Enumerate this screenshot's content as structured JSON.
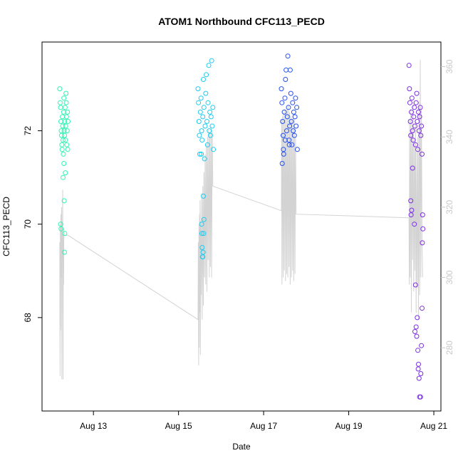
{
  "chart_data": {
    "type": "scatter",
    "title": "ATOM1 Northbound CFC113_PECD",
    "xlabel": "Date",
    "ylabel": "CFC113_PECD",
    "xlim": [
      "2016-08-11T19:00",
      "2016-08-21T04:00"
    ],
    "ylim": [
      66.0,
      73.9
    ],
    "y2lim": [
      262,
      367
    ],
    "x_ticks": [
      {
        "date": "2016-08-13T00:00",
        "label": "Aug 13"
      },
      {
        "date": "2016-08-15T00:00",
        "label": "Aug 15"
      },
      {
        "date": "2016-08-17T00:00",
        "label": "Aug 17"
      },
      {
        "date": "2016-08-19T00:00",
        "label": "Aug 19"
      },
      {
        "date": "2016-08-21T00:00",
        "label": "Aug 21"
      }
    ],
    "y_ticks": [
      68,
      70,
      72
    ],
    "y2_ticks": [
      280,
      300,
      320,
      340,
      360
    ],
    "grid": false,
    "series": [
      {
        "color": "#2ef5b4",
        "marker": "circle",
        "points": [
          [
            "2016-08-12T05:00",
            72.9
          ],
          [
            "2016-08-12T05:15",
            72.6
          ],
          [
            "2016-08-12T05:30",
            72.5
          ],
          [
            "2016-08-12T05:40",
            72.2
          ],
          [
            "2016-08-12T05:50",
            72.0
          ],
          [
            "2016-08-12T06:00",
            71.9
          ],
          [
            "2016-08-12T06:10",
            71.7
          ],
          [
            "2016-08-12T06:20",
            71.6
          ],
          [
            "2016-08-12T06:30",
            72.3
          ],
          [
            "2016-08-12T06:40",
            72.1
          ],
          [
            "2016-08-12T06:50",
            71.8
          ],
          [
            "2016-08-12T07:00",
            71.5
          ],
          [
            "2016-08-12T07:10",
            72.4
          ],
          [
            "2016-08-12T07:20",
            72.7
          ],
          [
            "2016-08-12T07:30",
            72.0
          ],
          [
            "2016-08-12T07:40",
            71.9
          ],
          [
            "2016-08-12T07:50",
            72.2
          ],
          [
            "2016-08-12T08:00",
            72.5
          ],
          [
            "2016-08-12T08:10",
            71.8
          ],
          [
            "2016-08-12T08:20",
            72.1
          ],
          [
            "2016-08-12T08:30",
            72.8
          ],
          [
            "2016-08-12T08:40",
            72.6
          ],
          [
            "2016-08-12T08:50",
            72.3
          ],
          [
            "2016-08-12T09:00",
            71.7
          ],
          [
            "2016-08-12T09:10",
            72.0
          ],
          [
            "2016-08-12T09:20",
            72.4
          ],
          [
            "2016-08-12T09:30",
            71.6
          ],
          [
            "2016-08-12T09:40",
            72.2
          ],
          [
            "2016-08-12T05:30",
            70.0
          ],
          [
            "2016-08-12T05:45",
            69.9
          ],
          [
            "2016-08-12T07:30",
            70.5
          ],
          [
            "2016-08-12T07:50",
            69.8
          ],
          [
            "2016-08-12T07:40",
            69.4
          ],
          [
            "2016-08-12T08:10",
            71.1
          ],
          [
            "2016-08-12T06:50",
            71.0
          ],
          [
            "2016-08-12T07:20",
            71.3
          ]
        ]
      },
      {
        "color": "#1ecbf0",
        "marker": "circle",
        "points": [
          [
            "2016-08-15T11:00",
            72.9
          ],
          [
            "2016-08-15T11:15",
            72.6
          ],
          [
            "2016-08-15T11:30",
            72.2
          ],
          [
            "2016-08-15T11:45",
            71.9
          ],
          [
            "2016-08-15T12:00",
            71.5
          ],
          [
            "2016-08-15T12:20",
            72.4
          ],
          [
            "2016-08-15T12:40",
            72.7
          ],
          [
            "2016-08-15T13:00",
            72.0
          ],
          [
            "2016-08-15T13:20",
            71.8
          ],
          [
            "2016-08-15T13:40",
            72.3
          ],
          [
            "2016-08-15T14:00",
            73.1
          ],
          [
            "2016-08-15T14:20",
            72.5
          ],
          [
            "2016-08-15T14:40",
            71.4
          ],
          [
            "2016-08-15T15:00",
            72.1
          ],
          [
            "2016-08-15T15:20",
            72.8
          ],
          [
            "2016-08-15T15:40",
            73.2
          ],
          [
            "2016-08-15T16:00",
            72.2
          ],
          [
            "2016-08-15T16:20",
            71.7
          ],
          [
            "2016-08-15T16:40",
            72.6
          ],
          [
            "2016-08-15T17:00",
            73.4
          ],
          [
            "2016-08-15T17:20",
            72.0
          ],
          [
            "2016-08-15T17:40",
            72.4
          ],
          [
            "2016-08-15T18:00",
            71.9
          ],
          [
            "2016-08-15T18:20",
            72.3
          ],
          [
            "2016-08-15T18:40",
            73.5
          ],
          [
            "2016-08-15T19:00",
            72.1
          ],
          [
            "2016-08-15T19:20",
            72.5
          ],
          [
            "2016-08-15T19:40",
            71.6
          ],
          [
            "2016-08-15T13:00",
            70.0
          ],
          [
            "2016-08-15T13:10",
            69.8
          ],
          [
            "2016-08-15T13:20",
            69.5
          ],
          [
            "2016-08-15T13:30",
            69.3
          ],
          [
            "2016-08-15T13:40",
            69.3
          ],
          [
            "2016-08-15T13:50",
            69.4
          ],
          [
            "2016-08-15T14:00",
            70.6
          ],
          [
            "2016-08-15T14:10",
            69.8
          ],
          [
            "2016-08-15T12:50",
            71.5
          ],
          [
            "2016-08-15T14:20",
            70.1
          ]
        ]
      },
      {
        "color": "#2550f0",
        "marker": "circle",
        "points": [
          [
            "2016-08-17T10:00",
            72.9
          ],
          [
            "2016-08-17T10:20",
            72.6
          ],
          [
            "2016-08-17T10:40",
            72.2
          ],
          [
            "2016-08-17T11:00",
            71.9
          ],
          [
            "2016-08-17T11:20",
            71.5
          ],
          [
            "2016-08-17T11:40",
            72.4
          ],
          [
            "2016-08-17T12:00",
            72.7
          ],
          [
            "2016-08-17T12:20",
            73.1
          ],
          [
            "2016-08-17T12:40",
            73.3
          ],
          [
            "2016-08-17T13:00",
            72.0
          ],
          [
            "2016-08-17T13:20",
            72.3
          ],
          [
            "2016-08-17T13:40",
            73.6
          ],
          [
            "2016-08-17T14:00",
            72.5
          ],
          [
            "2016-08-17T14:20",
            71.8
          ],
          [
            "2016-08-17T14:40",
            72.1
          ],
          [
            "2016-08-17T15:00",
            73.3
          ],
          [
            "2016-08-17T15:20",
            72.8
          ],
          [
            "2016-08-17T15:40",
            72.2
          ],
          [
            "2016-08-17T16:00",
            71.7
          ],
          [
            "2016-08-17T16:20",
            72.6
          ],
          [
            "2016-08-17T16:40",
            72.0
          ],
          [
            "2016-08-17T17:00",
            72.4
          ],
          [
            "2016-08-17T17:20",
            71.9
          ],
          [
            "2016-08-17T17:40",
            72.3
          ],
          [
            "2016-08-17T18:00",
            72.7
          ],
          [
            "2016-08-17T18:20",
            72.1
          ],
          [
            "2016-08-17T18:40",
            72.5
          ],
          [
            "2016-08-17T19:00",
            71.6
          ],
          [
            "2016-08-17T10:30",
            71.3
          ],
          [
            "2016-08-17T11:10",
            71.6
          ],
          [
            "2016-08-17T12:10",
            71.8
          ],
          [
            "2016-08-17T14:30",
            71.7
          ]
        ]
      },
      {
        "color": "#7d2ee6",
        "marker": "circle",
        "points": [
          [
            "2016-08-20T10:00",
            73.4
          ],
          [
            "2016-08-20T10:15",
            72.9
          ],
          [
            "2016-08-20T10:30",
            72.6
          ],
          [
            "2016-08-20T10:45",
            72.2
          ],
          [
            "2016-08-20T11:00",
            71.9
          ],
          [
            "2016-08-20T11:20",
            72.4
          ],
          [
            "2016-08-20T11:40",
            72.7
          ],
          [
            "2016-08-20T12:00",
            72.0
          ],
          [
            "2016-08-20T12:20",
            71.8
          ],
          [
            "2016-08-20T12:40",
            72.3
          ],
          [
            "2016-08-20T13:00",
            72.5
          ],
          [
            "2016-08-20T13:20",
            72.1
          ],
          [
            "2016-08-20T13:40",
            71.7
          ],
          [
            "2016-08-20T14:00",
            72.6
          ],
          [
            "2016-08-20T14:20",
            72.8
          ],
          [
            "2016-08-20T14:40",
            72.2
          ],
          [
            "2016-08-20T15:00",
            71.6
          ],
          [
            "2016-08-20T15:20",
            72.4
          ],
          [
            "2016-08-20T15:40",
            72.0
          ],
          [
            "2016-08-20T16:00",
            72.3
          ],
          [
            "2016-08-20T16:20",
            72.5
          ],
          [
            "2016-08-20T16:40",
            71.9
          ],
          [
            "2016-08-20T17:00",
            72.1
          ],
          [
            "2016-08-20T17:20",
            71.5
          ],
          [
            "2016-08-20T11:00",
            70.5
          ],
          [
            "2016-08-20T11:10",
            70.2
          ],
          [
            "2016-08-20T11:30",
            70.3
          ],
          [
            "2016-08-20T12:00",
            71.2
          ],
          [
            "2016-08-20T13:00",
            70.0
          ],
          [
            "2016-08-20T13:40",
            68.7
          ],
          [
            "2016-08-20T14:00",
            67.8
          ],
          [
            "2016-08-20T14:20",
            67.6
          ],
          [
            "2016-08-20T15:00",
            67.3
          ],
          [
            "2016-08-20T15:20",
            67.0
          ],
          [
            "2016-08-20T15:40",
            66.7
          ],
          [
            "2016-08-20T16:00",
            66.3
          ],
          [
            "2016-08-20T16:30",
            66.3
          ],
          [
            "2016-08-20T17:00",
            67.4
          ],
          [
            "2016-08-20T17:20",
            68.2
          ],
          [
            "2016-08-20T17:30",
            69.6
          ],
          [
            "2016-08-20T17:40",
            70.2
          ],
          [
            "2016-08-20T17:50",
            69.9
          ],
          [
            "2016-08-20T16:40",
            66.8
          ],
          [
            "2016-08-20T14:40",
            68.0
          ],
          [
            "2016-08-20T15:10",
            66.9
          ],
          [
            "2016-08-20T13:20",
            67.7
          ]
        ]
      }
    ],
    "secondary_series": {
      "color": "#d3d3d3",
      "type": "line",
      "axis": "right",
      "points": [
        [
          "2016-08-12T05:00",
          310
        ],
        [
          "2016-08-12T05:10",
          272
        ],
        [
          "2016-08-12T05:20",
          315
        ],
        [
          "2016-08-12T05:30",
          285
        ],
        [
          "2016-08-12T05:40",
          318
        ],
        [
          "2016-08-12T05:50",
          300
        ],
        [
          "2016-08-12T06:00",
          320
        ],
        [
          "2016-08-12T06:10",
          271
        ],
        [
          "2016-08-12T06:20",
          316
        ],
        [
          "2016-08-12T06:30",
          305
        ],
        [
          "2016-08-12T06:40",
          325
        ],
        [
          "2016-08-12T06:50",
          271
        ],
        [
          "2016-08-12T07:00",
          312
        ],
        [
          "2016-08-12T07:10",
          298
        ],
        [
          "2016-08-12T07:20",
          314
        ],
        [
          "2016-08-12T07:30",
          312
        ],
        [
          "2016-08-12T09:40",
          312
        ],
        [
          "2016-08-15T11:00",
          288
        ],
        [
          "2016-08-15T11:10",
          310
        ],
        [
          "2016-08-15T11:20",
          275
        ],
        [
          "2016-08-15T11:30",
          315
        ],
        [
          "2016-08-15T11:40",
          280
        ],
        [
          "2016-08-15T11:50",
          318
        ],
        [
          "2016-08-15T12:00",
          290
        ],
        [
          "2016-08-15T12:10",
          322
        ],
        [
          "2016-08-15T12:20",
          278
        ],
        [
          "2016-08-15T12:30",
          316
        ],
        [
          "2016-08-15T12:40",
          295
        ],
        [
          "2016-08-15T13:00",
          324
        ],
        [
          "2016-08-15T13:20",
          288
        ],
        [
          "2016-08-15T13:40",
          326
        ],
        [
          "2016-08-15T14:00",
          292
        ],
        [
          "2016-08-15T14:20",
          330
        ],
        [
          "2016-08-15T14:40",
          300
        ],
        [
          "2016-08-15T15:00",
          335
        ],
        [
          "2016-08-15T15:20",
          298
        ],
        [
          "2016-08-15T15:40",
          338
        ],
        [
          "2016-08-15T16:00",
          296
        ],
        [
          "2016-08-15T16:20",
          340
        ],
        [
          "2016-08-15T16:40",
          305
        ],
        [
          "2016-08-15T17:00",
          342
        ],
        [
          "2016-08-15T17:20",
          300
        ],
        [
          "2016-08-15T17:40",
          341
        ],
        [
          "2016-08-15T18:00",
          303
        ],
        [
          "2016-08-15T18:20",
          343
        ],
        [
          "2016-08-15T18:40",
          300
        ],
        [
          "2016-08-15T19:00",
          342
        ],
        [
          "2016-08-15T19:20",
          326
        ],
        [
          "2016-08-17T10:00",
          319
        ],
        [
          "2016-08-17T10:10",
          345
        ],
        [
          "2016-08-17T10:20",
          298
        ],
        [
          "2016-08-17T10:40",
          346
        ],
        [
          "2016-08-17T11:00",
          300
        ],
        [
          "2016-08-17T11:20",
          347
        ],
        [
          "2016-08-17T11:40",
          302
        ],
        [
          "2016-08-17T12:00",
          348
        ],
        [
          "2016-08-17T12:20",
          299
        ],
        [
          "2016-08-17T12:40",
          347
        ],
        [
          "2016-08-17T13:00",
          301
        ],
        [
          "2016-08-17T13:20",
          348
        ],
        [
          "2016-08-17T13:40",
          300
        ],
        [
          "2016-08-17T14:00",
          349
        ],
        [
          "2016-08-17T14:20",
          303
        ],
        [
          "2016-08-17T14:40",
          347
        ],
        [
          "2016-08-17T15:00",
          298
        ],
        [
          "2016-08-17T15:20",
          346
        ],
        [
          "2016-08-17T15:40",
          300
        ],
        [
          "2016-08-17T16:00",
          345
        ],
        [
          "2016-08-17T16:20",
          302
        ],
        [
          "2016-08-17T16:40",
          346
        ],
        [
          "2016-08-17T17:00",
          299
        ],
        [
          "2016-08-17T17:20",
          345
        ],
        [
          "2016-08-17T17:40",
          301
        ],
        [
          "2016-08-17T18:00",
          340
        ],
        [
          "2016-08-17T18:20",
          318
        ],
        [
          "2016-08-20T10:00",
          317
        ],
        [
          "2016-08-20T10:10",
          298
        ],
        [
          "2016-08-20T10:20",
          345
        ],
        [
          "2016-08-20T10:40",
          300
        ],
        [
          "2016-08-20T11:00",
          348
        ],
        [
          "2016-08-20T11:20",
          290
        ],
        [
          "2016-08-20T11:40",
          344
        ],
        [
          "2016-08-20T12:00",
          305
        ],
        [
          "2016-08-20T12:20",
          350
        ],
        [
          "2016-08-20T12:40",
          296
        ],
        [
          "2016-08-20T13:00",
          338
        ],
        [
          "2016-08-20T13:20",
          302
        ],
        [
          "2016-08-20T13:40",
          345
        ],
        [
          "2016-08-20T14:00",
          290
        ],
        [
          "2016-08-20T14:20",
          336
        ],
        [
          "2016-08-20T14:40",
          297
        ],
        [
          "2016-08-20T15:00",
          340
        ],
        [
          "2016-08-20T15:20",
          288
        ],
        [
          "2016-08-20T15:40",
          350
        ],
        [
          "2016-08-20T16:00",
          295
        ],
        [
          "2016-08-20T16:20",
          362
        ],
        [
          "2016-08-20T16:40",
          300
        ],
        [
          "2016-08-20T17:00",
          348
        ],
        [
          "2016-08-20T17:20",
          310
        ],
        [
          "2016-08-20T17:40",
          300
        ]
      ]
    }
  }
}
